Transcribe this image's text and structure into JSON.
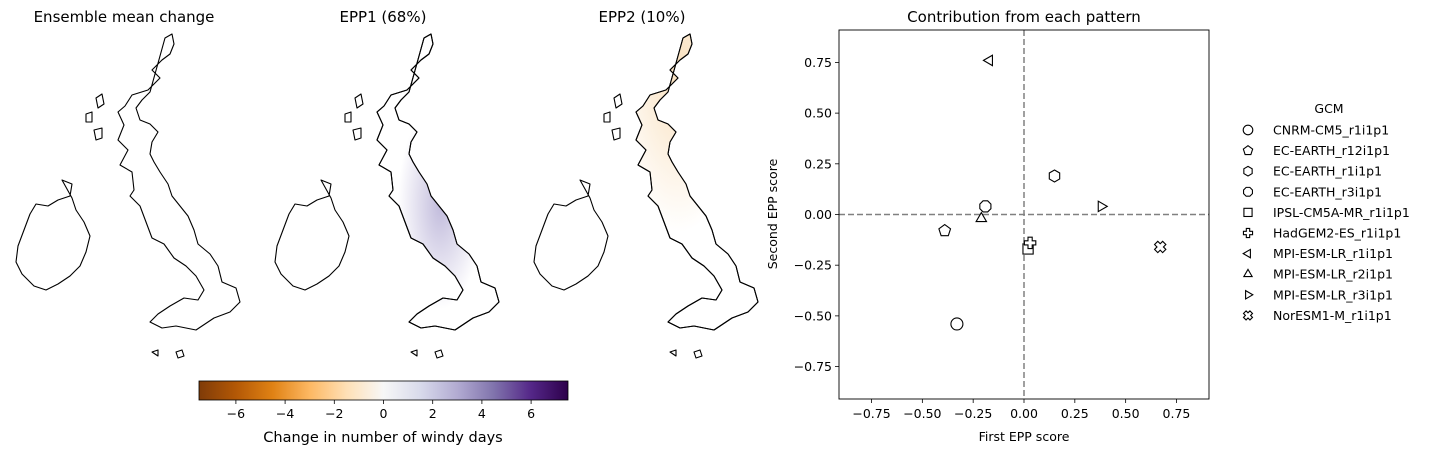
{
  "maps": [
    {
      "title": "Ensemble mean change",
      "fill": "#f2f2f3",
      "tint": "#f2f2f3"
    },
    {
      "title": "EPP1 (68%)",
      "fill": "#e9e7f2",
      "tint": "#b7b0d6"
    },
    {
      "title": "EPP2 (10%)",
      "fill": "#efeef4",
      "tint": "#f9dcb4"
    }
  ],
  "colorbar": {
    "label": "Change in number of windy days",
    "min": -7.5,
    "max": 7.5,
    "ticks": [
      -6,
      -4,
      -2,
      0,
      2,
      4,
      6
    ],
    "tick_labels": [
      "−6",
      "−4",
      "−2",
      "0",
      "2",
      "4",
      "6"
    ],
    "colors": [
      "#7f3b08",
      "#b35806",
      "#e08214",
      "#fdb863",
      "#fee0b6",
      "#f7f7f7",
      "#d8daeb",
      "#b2abd2",
      "#8073ac",
      "#542788",
      "#2d004b"
    ]
  },
  "chart_data": {
    "type": "scatter",
    "title": "Contribution from each pattern",
    "xlabel": "First EPP score",
    "ylabel": "Second EPP score",
    "xlim": [
      -0.91,
      0.91
    ],
    "ylim": [
      -0.91,
      0.91
    ],
    "xticks": [
      -0.75,
      -0.5,
      -0.25,
      0.0,
      0.25,
      0.5,
      0.75
    ],
    "yticks": [
      -0.75,
      -0.5,
      -0.25,
      0.0,
      0.25,
      0.5,
      0.75
    ],
    "xtick_labels": [
      "−0.75",
      "−0.50",
      "−0.25",
      "0.00",
      "0.25",
      "0.50",
      "0.75"
    ],
    "ytick_labels": [
      "−0.75",
      "−0.50",
      "−0.25",
      "0.00",
      "0.25",
      "0.50",
      "0.75"
    ],
    "zero_lines": true,
    "legend_title": "GCM",
    "legend_position": "right",
    "series": [
      {
        "name": "CNRM-CM5_r1i1p1",
        "marker": "circle",
        "x": -0.33,
        "y": -0.54
      },
      {
        "name": "EC-EARTH_r12i1p1",
        "marker": "pentagon",
        "x": -0.39,
        "y": -0.08
      },
      {
        "name": "EC-EARTH_r1i1p1",
        "marker": "hexagon",
        "x": 0.15,
        "y": 0.19
      },
      {
        "name": "EC-EARTH_r3i1p1",
        "marker": "octagon",
        "x": -0.19,
        "y": 0.04
      },
      {
        "name": "IPSL-CM5A-MR_r1i1p1",
        "marker": "square",
        "x": 0.02,
        "y": -0.17
      },
      {
        "name": "HadGEM2-ES_r1i1p1",
        "marker": "plus",
        "x": 0.03,
        "y": -0.14
      },
      {
        "name": "MPI-ESM-LR_r1i1p1",
        "marker": "triangle-left",
        "x": -0.17,
        "y": 0.76
      },
      {
        "name": "MPI-ESM-LR_r2i1p1",
        "marker": "triangle-up",
        "x": -0.21,
        "y": -0.02
      },
      {
        "name": "MPI-ESM-LR_r3i1p1",
        "marker": "triangle-right",
        "x": 0.38,
        "y": 0.04
      },
      {
        "name": "NorESM1-M_r1i1p1",
        "marker": "x-filled",
        "x": 0.67,
        "y": -0.16
      }
    ]
  }
}
